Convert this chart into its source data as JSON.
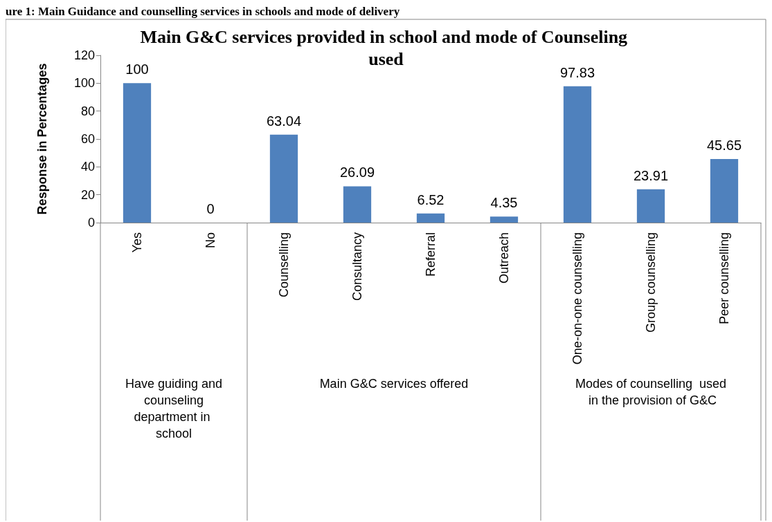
{
  "chart_data": {
    "type": "bar",
    "title": "Main G&C services provided in school and mode of Counseling used",
    "ylabel": "Response in Percentages",
    "categories": [
      "Yes",
      "No",
      "Counselling",
      "Consultancy",
      "Referral",
      "Outreach",
      "One-on-one counselling",
      "Group counselling",
      "Peer counselling"
    ],
    "values": [
      100,
      0,
      63.04,
      26.09,
      6.52,
      4.35,
      97.83,
      23.91,
      45.65
    ],
    "color": "#4f81bd",
    "ylim": [
      0,
      120
    ],
    "yticks": [
      0,
      20,
      40,
      60,
      80,
      100,
      120
    ],
    "grid": false,
    "data_labels": true,
    "annotations": [
      "ure 1: Main Guidance and counselling services in schools and mode of delivery",
      "Have guiding and counseling department in school",
      "Main G&C services offered",
      "Modes of counselling  used in the provision of G&C"
    ]
  }
}
